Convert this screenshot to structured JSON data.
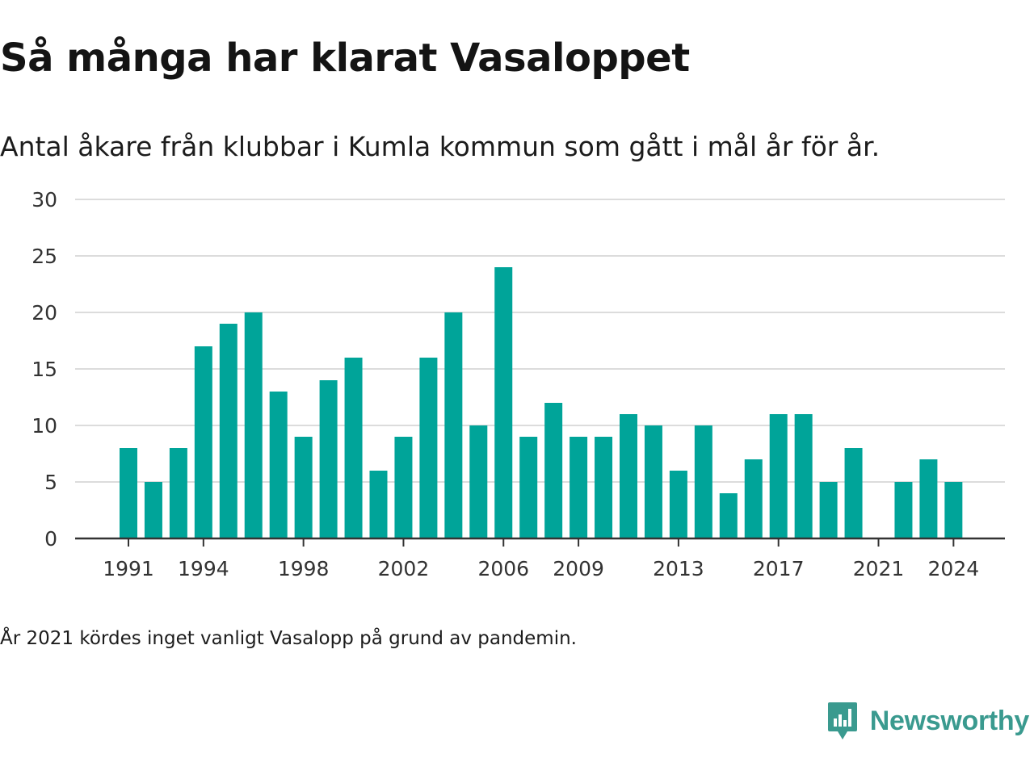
{
  "header": {
    "title": "Så många har klarat Vasaloppet",
    "subtitle": "Antal åkare från klubbar i Kumla kommun som gått i mål år för år."
  },
  "footer": {
    "note": "År 2021 kördes inget vanligt Vasalopp på grund av pandemin.",
    "brand": "Newsworthy",
    "brand_icon": "newsworthy-logo-icon"
  },
  "colors": {
    "bar": "#00a499",
    "grid": "#dcdcdc",
    "axis": "#333333",
    "brand": "#3a9a8f"
  },
  "chart_data": {
    "type": "bar",
    "categories": [
      "1991",
      "1992",
      "1993",
      "1994",
      "1995",
      "1996",
      "1997",
      "1998",
      "1999",
      "2000",
      "2001",
      "2002",
      "2003",
      "2004",
      "2005",
      "2006",
      "2007",
      "2008",
      "2009",
      "2010",
      "2011",
      "2012",
      "2013",
      "2014",
      "2015",
      "2016",
      "2017",
      "2018",
      "2019",
      "2020",
      "2021",
      "2022",
      "2023",
      "2024"
    ],
    "values": [
      8,
      5,
      8,
      17,
      19,
      20,
      13,
      9,
      14,
      16,
      6,
      9,
      16,
      20,
      10,
      24,
      9,
      12,
      9,
      9,
      11,
      10,
      6,
      10,
      4,
      7,
      11,
      11,
      5,
      8,
      0,
      5,
      7,
      5
    ],
    "x_tick_labels": [
      "1991",
      "1994",
      "1998",
      "2002",
      "2006",
      "2009",
      "2013",
      "2017",
      "2021",
      "2024"
    ],
    "y_ticks": [
      0,
      5,
      10,
      15,
      20,
      25,
      30
    ],
    "ylim": [
      0,
      30
    ],
    "xlabel": "",
    "ylabel": "",
    "grid": true,
    "legend": "none"
  }
}
